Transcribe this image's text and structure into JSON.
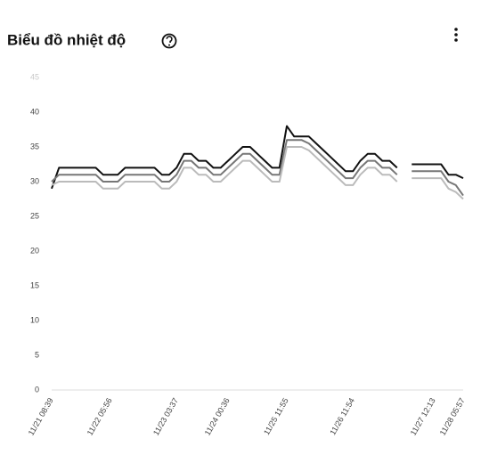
{
  "chart_data": {
    "type": "line",
    "title": "Biểu đồ nhiệt độ",
    "categories": [
      "11/21 08:39",
      null,
      null,
      null,
      null,
      null,
      null,
      null,
      "11/22 05:56",
      null,
      null,
      null,
      null,
      null,
      null,
      null,
      null,
      "11/23 03:37",
      null,
      null,
      null,
      null,
      null,
      null,
      "11/24 00:36",
      null,
      null,
      null,
      null,
      null,
      null,
      null,
      "11/25 11:55",
      null,
      null,
      null,
      null,
      null,
      null,
      null,
      null,
      "11/26 11:54",
      null,
      null,
      null,
      null,
      null,
      null,
      null,
      null,
      null,
      null,
      "11/27 12:13",
      null,
      null,
      null,
      "11/28 05:57"
    ],
    "series": [
      {
        "color": "#111111",
        "values": [
          29,
          32,
          32,
          32,
          32,
          32,
          32,
          31,
          31,
          31,
          32,
          32,
          32,
          32,
          32,
          31,
          31,
          32,
          34,
          34,
          33,
          33,
          32,
          32,
          33,
          34,
          35,
          35,
          34,
          33,
          32,
          32,
          38,
          36.5,
          36.5,
          36.5,
          35.5,
          34.5,
          33.5,
          32.5,
          31.5,
          31.5,
          33,
          34,
          34,
          33,
          33,
          32,
          null,
          32.5,
          32.5,
          32.5,
          32.5,
          32.5,
          31,
          31,
          30.5
        ]
      },
      {
        "color": "#777777",
        "values": [
          30,
          31,
          31,
          31,
          31,
          31,
          31,
          30,
          30,
          30,
          31,
          31,
          31,
          31,
          31,
          30,
          30,
          31,
          33,
          33,
          32,
          32,
          31,
          31,
          32,
          33,
          34,
          34,
          33,
          32,
          31,
          31,
          36,
          36,
          36,
          35.5,
          34.5,
          33.5,
          32.5,
          31.5,
          30.5,
          30.5,
          32,
          33,
          33,
          32,
          32,
          31,
          null,
          31.5,
          31.5,
          31.5,
          31.5,
          31.5,
          30,
          29.5,
          28
        ]
      },
      {
        "color": "#bbbbbb",
        "values": [
          29.5,
          30,
          30,
          30,
          30,
          30,
          30,
          29,
          29,
          29,
          30,
          30,
          30,
          30,
          30,
          29,
          29,
          30,
          32,
          32,
          31,
          31,
          30,
          30,
          31,
          32,
          33,
          33,
          32,
          31,
          30,
          30,
          35,
          35,
          35,
          34.5,
          33.5,
          32.5,
          31.5,
          30.5,
          29.5,
          29.5,
          31,
          32,
          32,
          31,
          31,
          30,
          null,
          30.5,
          30.5,
          30.5,
          30.5,
          30.5,
          29,
          28.5,
          27.5
        ]
      }
    ],
    "ylim": [
      0,
      45
    ],
    "yticks": [
      0,
      5,
      10,
      15,
      20,
      25,
      30,
      35,
      40,
      45
    ],
    "grid": false
  }
}
